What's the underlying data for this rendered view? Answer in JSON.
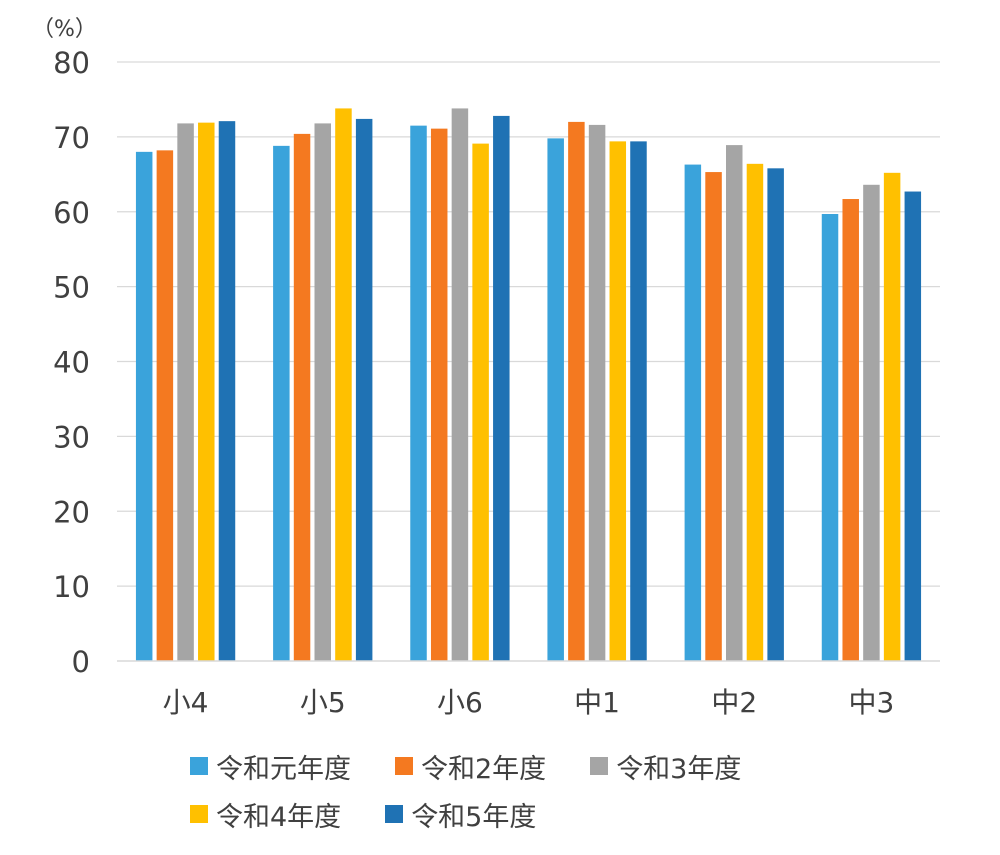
{
  "chart_data": {
    "type": "bar",
    "unit_label": "（%）",
    "categories": [
      "小4",
      "小5",
      "小6",
      "中1",
      "中2",
      "中3"
    ],
    "ylim": [
      0,
      80
    ],
    "yticks": [
      0,
      10,
      20,
      30,
      40,
      50,
      60,
      70,
      80
    ],
    "grid": true,
    "legend_position": "bottom",
    "series": [
      {
        "name": "令和元年度",
        "color": "#3AA3DB",
        "values": [
          68.0,
          68.8,
          71.5,
          69.8,
          66.3,
          59.7
        ]
      },
      {
        "name": "令和2年度",
        "color": "#F47920",
        "values": [
          68.2,
          70.4,
          71.1,
          72.0,
          65.3,
          61.7
        ]
      },
      {
        "name": "令和3年度",
        "color": "#A5A5A5",
        "values": [
          71.8,
          71.8,
          73.8,
          71.6,
          68.9,
          63.6
        ]
      },
      {
        "name": "令和4年度",
        "color": "#FFC000",
        "values": [
          71.9,
          73.8,
          69.1,
          69.4,
          66.4,
          65.2
        ]
      },
      {
        "name": "令和5年度",
        "color": "#1F72B4",
        "values": [
          72.1,
          72.4,
          72.8,
          69.4,
          65.8,
          62.7
        ]
      }
    ]
  }
}
